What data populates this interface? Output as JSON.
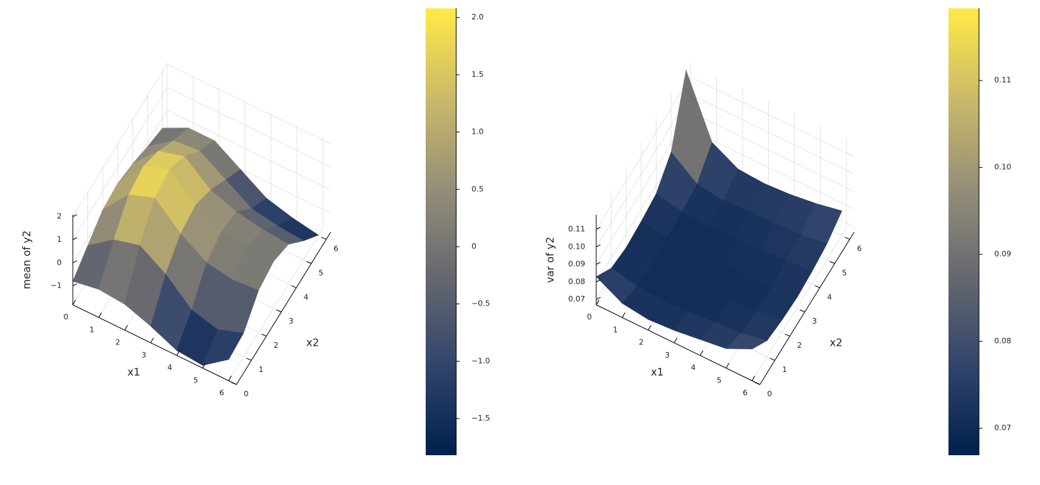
{
  "chart_data": [
    {
      "type": "surface",
      "zlabel": "mean of y2",
      "xlabel": "x1",
      "ylabel": "x2",
      "x": [
        0,
        1,
        2,
        3,
        4,
        5,
        6
      ],
      "y": [
        0,
        1,
        2,
        3,
        4,
        5,
        6
      ],
      "z": [
        [
          -0.8,
          -0.3,
          0.2,
          0.3,
          0.1,
          -0.2,
          -0.45
        ],
        [
          -0.6,
          0.5,
          1.4,
          1.6,
          1.2,
          0.6,
          0.1
        ],
        [
          -0.7,
          0.8,
          1.8,
          2.0,
          1.5,
          0.7,
          0.1
        ],
        [
          -1.1,
          0.1,
          0.8,
          1.0,
          0.6,
          0.0,
          -0.6
        ],
        [
          -1.6,
          -0.9,
          0.1,
          0.4,
          0.2,
          -0.7,
          -1.3
        ],
        [
          -1.7,
          -1.2,
          -0.1,
          0.3,
          0.0,
          -0.9,
          -1.6
        ],
        [
          -0.9,
          -0.8,
          0.0,
          0.2,
          -0.1,
          -1.0,
          -1.8
        ]
      ],
      "xlim": [
        0,
        6.3
      ],
      "ylim": [
        0,
        6.3
      ],
      "zlim": [
        -1.82,
        2.08
      ],
      "xticks": [
        0,
        1,
        2,
        3,
        4,
        5,
        6
      ],
      "yticks": [
        0,
        1,
        2,
        3,
        4,
        5,
        6
      ],
      "zticks": [
        2,
        1,
        0,
        {
          "value": -1,
          "label": "−1"
        }
      ],
      "cticks": [
        {
          "value": 2,
          "label": "2.0"
        },
        1.5,
        {
          "value": 1,
          "label": "1.0"
        },
        0.5,
        0,
        {
          "value": -0.5,
          "label": "−0.5"
        },
        {
          "value": -1,
          "label": "−1.0"
        },
        {
          "value": -1.5,
          "label": "−1.5"
        }
      ],
      "colormap": [
        "#00204d",
        "#31446b",
        "#666870",
        "#958f78",
        "#cbba69",
        "#ffea46"
      ],
      "grid": true
    },
    {
      "type": "surface",
      "zlabel": "var of y2",
      "xlabel": "x1",
      "ylabel": "x2",
      "x": [
        0,
        1,
        2,
        3,
        4,
        5,
        6
      ],
      "y": [
        0,
        1,
        2,
        3,
        4,
        5,
        6
      ],
      "z": [
        [
          0.083,
          0.074,
          0.072,
          0.073,
          0.075,
          0.085,
          0.118
        ],
        [
          0.075,
          0.071,
          0.07,
          0.071,
          0.072,
          0.074,
          0.084
        ],
        [
          0.073,
          0.07,
          0.071,
          0.07,
          0.071,
          0.072,
          0.076
        ],
        [
          0.074,
          0.071,
          0.07,
          0.072,
          0.071,
          0.073,
          0.075
        ],
        [
          0.076,
          0.072,
          0.071,
          0.07,
          0.072,
          0.073,
          0.076
        ],
        [
          0.078,
          0.073,
          0.072,
          0.071,
          0.073,
          0.074,
          0.078
        ],
        [
          0.085,
          0.076,
          0.074,
          0.073,
          0.074,
          0.076,
          0.081
        ]
      ],
      "xlim": [
        0,
        6.3
      ],
      "ylim": [
        0,
        6.3
      ],
      "zlim": [
        0.0669,
        0.1183
      ],
      "xticks": [
        0,
        1,
        2,
        3,
        4,
        5,
        6
      ],
      "yticks": [
        0,
        1,
        2,
        3,
        4,
        5,
        6
      ],
      "zticks": [
        0.11,
        {
          "value": 0.1,
          "label": "0.10"
        },
        0.09,
        0.08,
        0.07
      ],
      "cticks": [
        0.11,
        {
          "value": 0.1,
          "label": "0.10"
        },
        0.09,
        0.08,
        0.07
      ],
      "colormap": [
        "#00204d",
        "#31446b",
        "#666870",
        "#958f78",
        "#cbba69",
        "#ffea46"
      ],
      "grid": true
    }
  ]
}
